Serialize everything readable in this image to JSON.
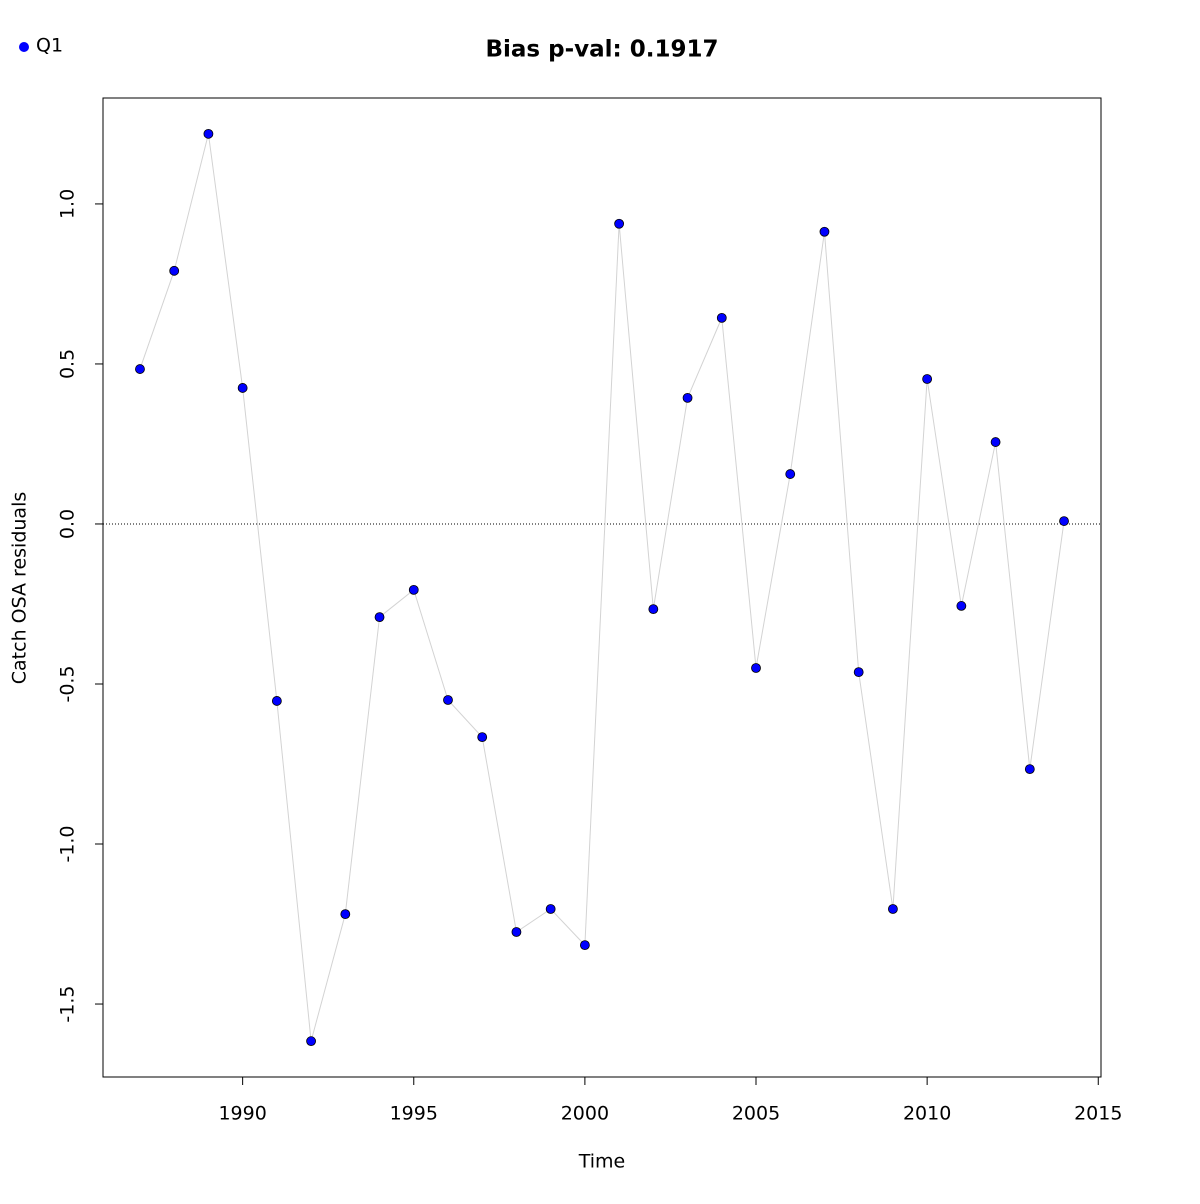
{
  "chart_data": {
    "type": "scatter-line",
    "title": "Bias p-val: 0.1917",
    "title_color": "#228b22",
    "x_label": "Time",
    "y_label": "Catch OSA residuals",
    "x": [
      1987,
      1988,
      1989,
      1990,
      1991,
      1992,
      1993,
      1994,
      1995,
      1996,
      1997,
      1998,
      1999,
      2000,
      2001,
      2002,
      2003,
      2004,
      2005,
      2006,
      2007,
      2008,
      2009,
      2010,
      2011,
      2012,
      2013,
      2014
    ],
    "series": [
      {
        "name": "Q1",
        "color": "#0000ff",
        "line_color": "#d3d3d3",
        "values": [
          0.484,
          0.791,
          1.219,
          0.425,
          -0.553,
          -1.616,
          -1.219,
          -0.291,
          -0.206,
          -0.55,
          -0.666,
          -1.275,
          -1.203,
          -1.316,
          0.938,
          -0.266,
          0.394,
          0.644,
          -0.45,
          0.156,
          0.913,
          -0.463,
          -1.203,
          0.453,
          -0.256,
          0.256,
          -0.766,
          0.009
        ]
      }
    ],
    "xlim": [
      1985.92,
      2015.08
    ],
    "ylim": [
      -1.728,
      1.331
    ],
    "xticks": [
      1990,
      1995,
      2000,
      2005,
      2010,
      2015
    ],
    "yticks": [
      -1.5,
      {
        "value": -1,
        "label": "-1.0"
      },
      -0.5,
      {
        "value": 0,
        "label": "0.0"
      },
      0.5,
      {
        "value": 1,
        "label": "1.0"
      }
    ],
    "hline": 0,
    "legend": "top-left"
  }
}
